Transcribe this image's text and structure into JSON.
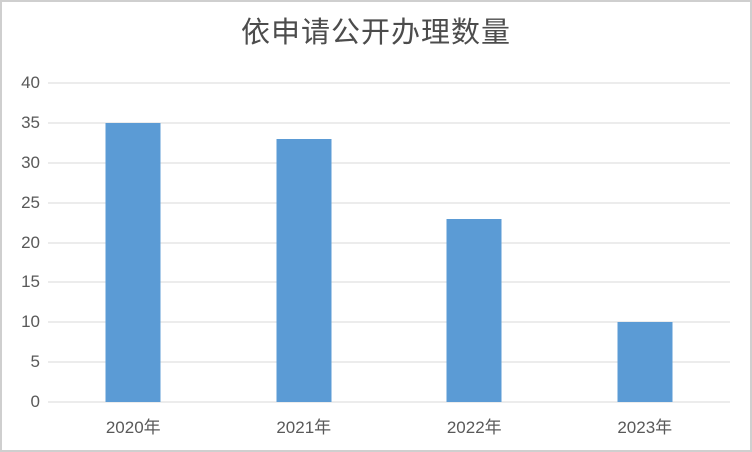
{
  "chart_data": {
    "type": "bar",
    "title": "依申请公开办理数量",
    "categories": [
      "2020年",
      "2021年",
      "2022年",
      "2023年"
    ],
    "values": [
      35,
      33,
      23,
      10
    ],
    "xlabel": "",
    "ylabel": "",
    "ylim": [
      0,
      40
    ],
    "yticks": [
      0,
      5,
      10,
      15,
      20,
      25,
      30,
      35,
      40
    ],
    "grid": "horizontal",
    "legend": "none",
    "bar_color": "#5b9bd5",
    "gridline_color": "#d9d9d9",
    "tick_label_color": "#595959",
    "title_color": "#4c4c4c",
    "background_color": "#ffffff",
    "border_color": "#cfcfcf"
  }
}
